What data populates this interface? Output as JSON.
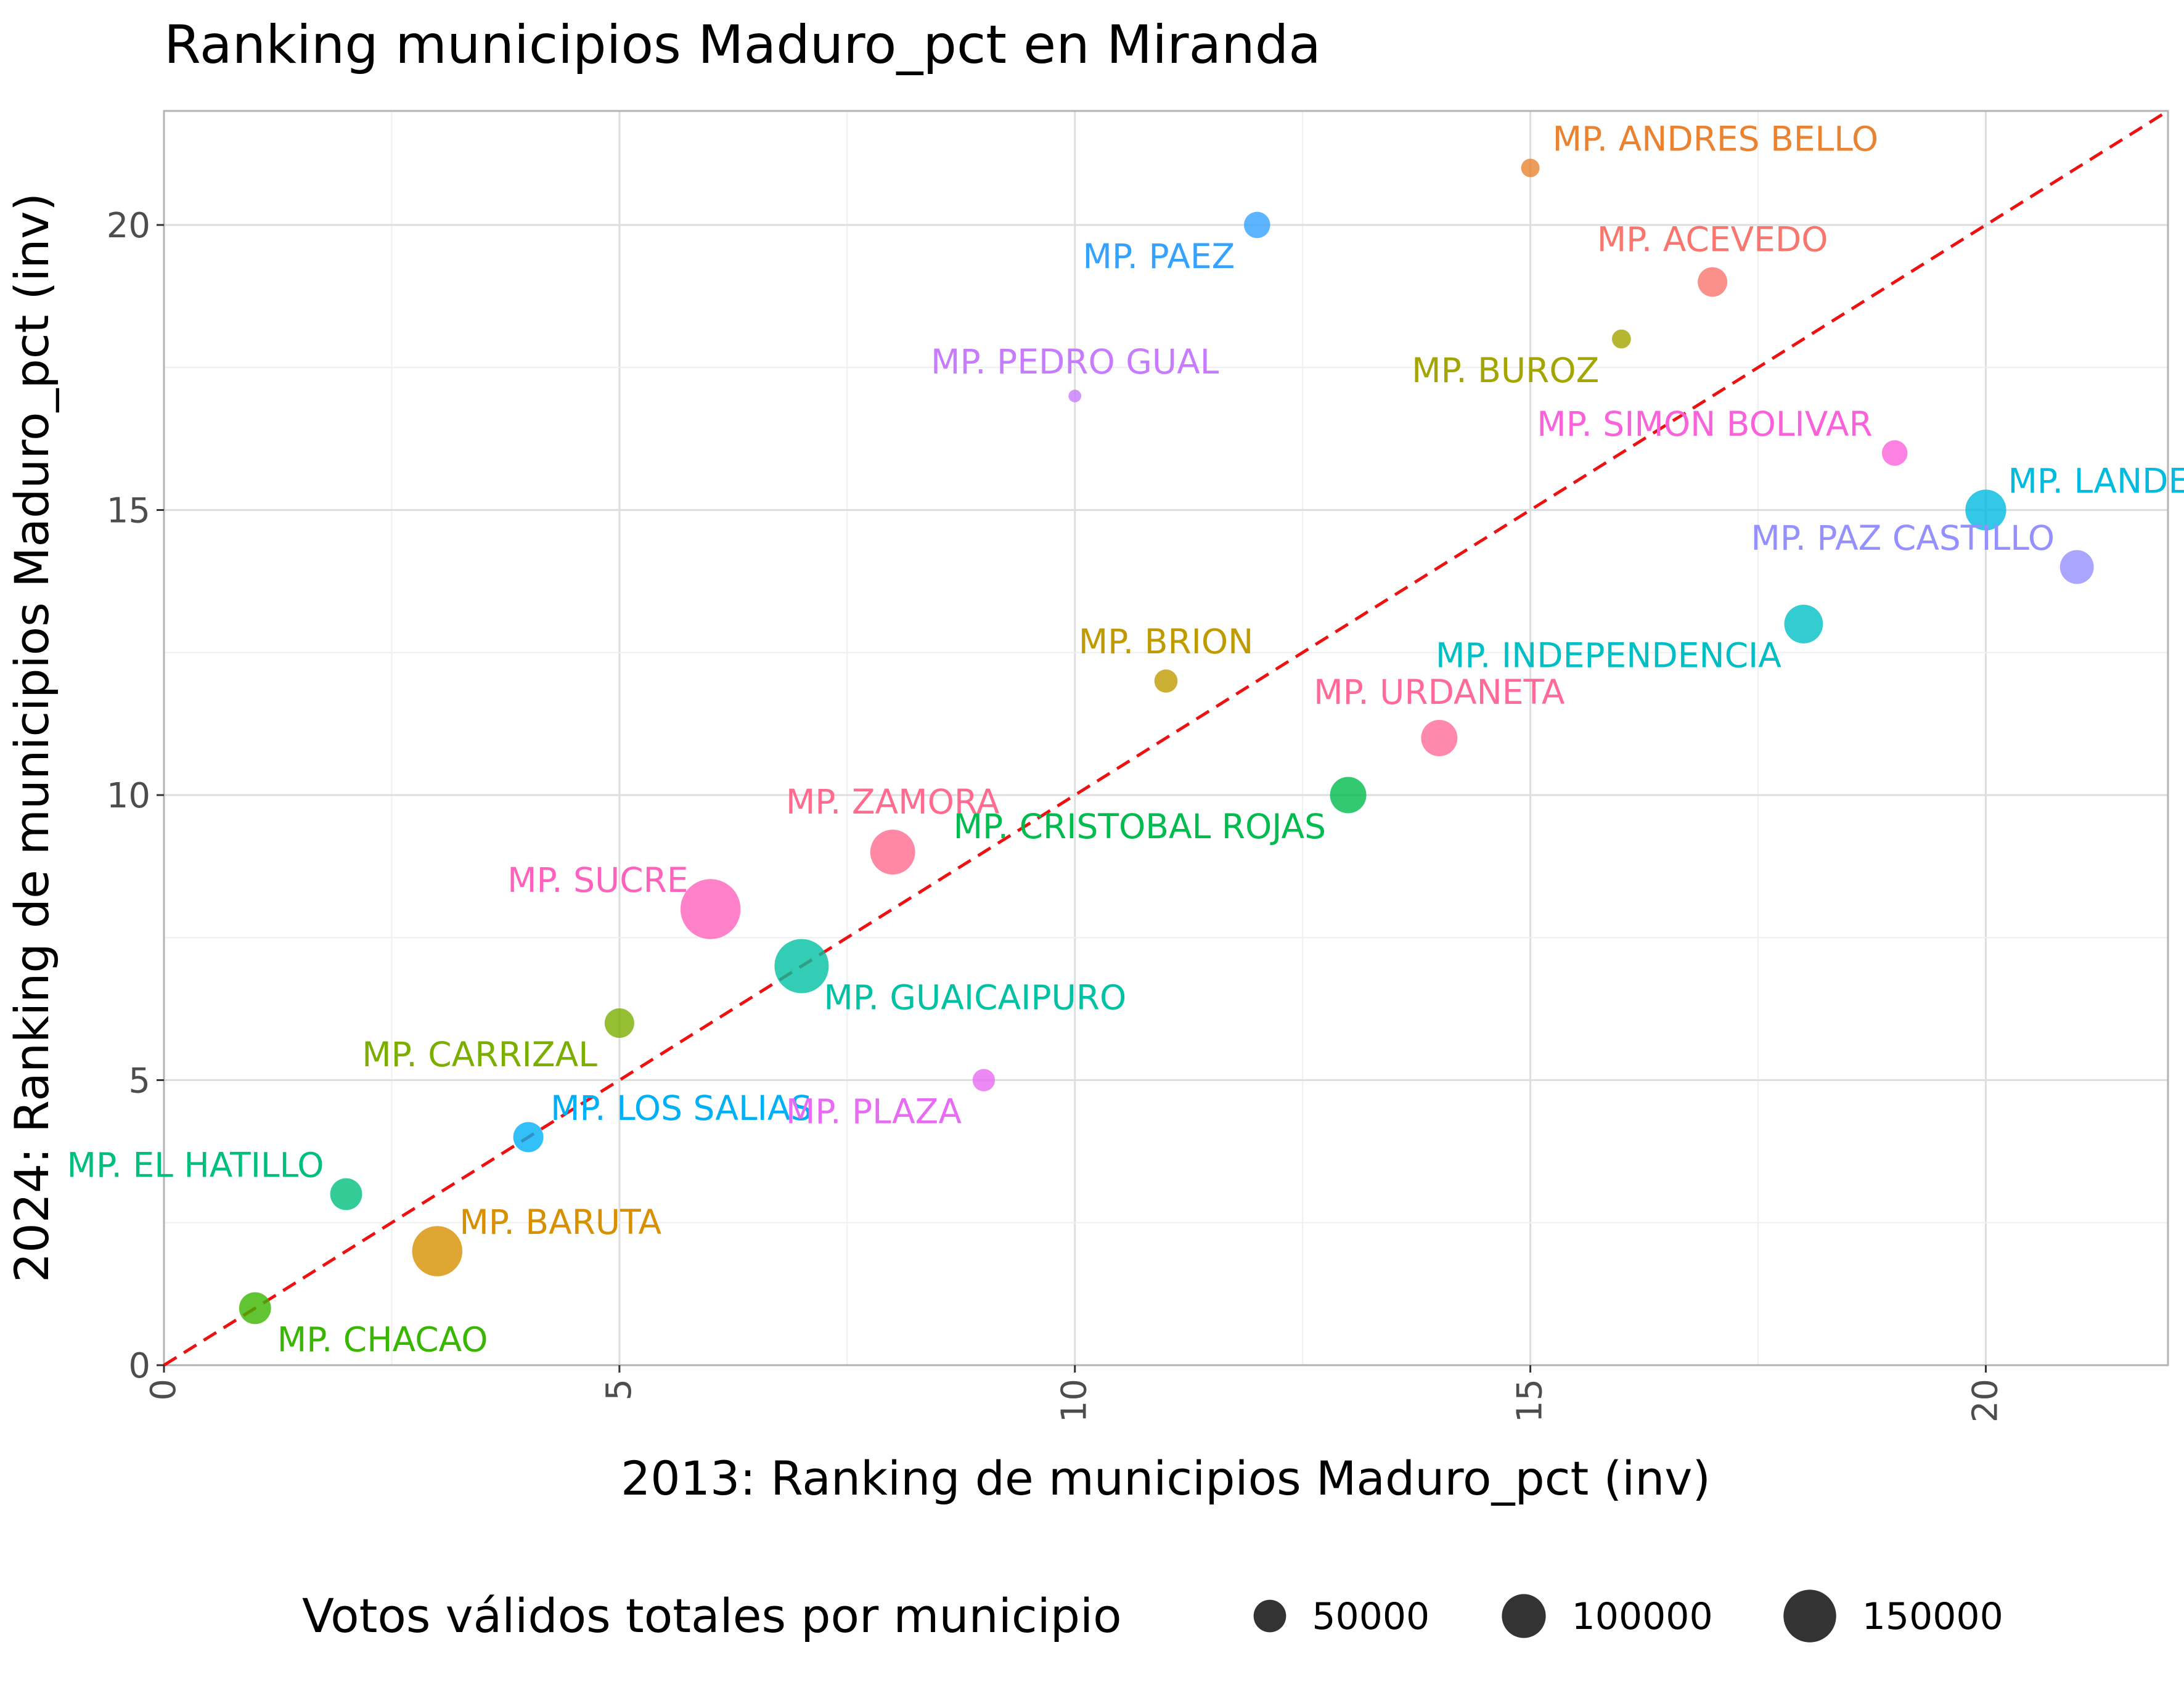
{
  "chart_data": {
    "type": "scatter",
    "title": "Ranking municipios Maduro_pct en Miranda",
    "xlabel": "2013: Ranking de municipios Maduro_pct (inv)",
    "ylabel": "2024: Ranking de municipios Maduro_pct (inv)",
    "xlim": [
      0,
      22
    ],
    "ylim": [
      0,
      22
    ],
    "x_ticks": [
      0,
      5,
      10,
      15,
      20
    ],
    "y_ticks": [
      0,
      5,
      10,
      15,
      20
    ],
    "grid": true,
    "reference_line": {
      "type": "diagonal y = x",
      "style": "dashed",
      "color": "#ee1111"
    },
    "legend": {
      "title": "Votos válidos totales por municipio",
      "placement": "bottom",
      "entries": [
        {
          "label": "50000",
          "value": 50000
        },
        {
          "label": "100000",
          "value": 100000
        },
        {
          "label": "150000",
          "value": 150000
        }
      ]
    },
    "points": [
      {
        "label": "MP. ACEVEDO",
        "x": 17,
        "y": 19,
        "votes": 40000,
        "color": "#F8766D",
        "label_pos": "above"
      },
      {
        "label": "MP. ANDRES BELLO",
        "x": 15,
        "y": 21,
        "votes": 12000,
        "color": "#EA8331",
        "label_pos": "above-right"
      },
      {
        "label": "MP. BARUTA",
        "x": 3,
        "y": 2,
        "votes": 135000,
        "color": "#D89000",
        "label_pos": "above-right"
      },
      {
        "label": "MP. BRION",
        "x": 11,
        "y": 12,
        "votes": 22000,
        "color": "#C09B00",
        "label_pos": "above"
      },
      {
        "label": "MP. BUROZ",
        "x": 16,
        "y": 18,
        "votes": 13000,
        "color": "#A3A500",
        "label_pos": "below-left"
      },
      {
        "label": "MP. CARRIZAL",
        "x": 5,
        "y": 6,
        "votes": 40000,
        "color": "#7CAE00",
        "label_pos": "below-left"
      },
      {
        "label": "MP. CHACAO",
        "x": 1,
        "y": 1,
        "votes": 48000,
        "color": "#39B600",
        "label_pos": "below-right"
      },
      {
        "label": "MP. CRISTOBAL ROJAS",
        "x": 13,
        "y": 10,
        "votes": 65000,
        "color": "#00BB4E",
        "label_pos": "below-left"
      },
      {
        "label": "MP. EL HATILLO",
        "x": 2,
        "y": 3,
        "votes": 48000,
        "color": "#00BF7D",
        "label_pos": "above-left"
      },
      {
        "label": "MP. GUAICAIPURO",
        "x": 7,
        "y": 7,
        "votes": 160000,
        "color": "#00C1A3",
        "label_pos": "below-right"
      },
      {
        "label": "MP. INDEPENDENCIA",
        "x": 18,
        "y": 13,
        "votes": 75000,
        "color": "#00BFC4",
        "label_pos": "below-left"
      },
      {
        "label": "MP. LANDER",
        "x": 20,
        "y": 15,
        "votes": 85000,
        "color": "#00BAE0",
        "label_pos": "above-right"
      },
      {
        "label": "MP. LOS SALIAS",
        "x": 4,
        "y": 4,
        "votes": 42000,
        "color": "#00B0F6",
        "label_pos": "above-right"
      },
      {
        "label": "MP. PAEZ",
        "x": 12,
        "y": 20,
        "votes": 30000,
        "color": "#35A2FF",
        "label_pos": "below-left"
      },
      {
        "label": "MP. PAZ CASTILLO",
        "x": 21,
        "y": 14,
        "votes": 55000,
        "color": "#9590FF",
        "label_pos": "above-left"
      },
      {
        "label": "MP. PEDRO GUAL",
        "x": 10,
        "y": 17,
        "votes": 4000,
        "color": "#C77CFF",
        "label_pos": "above"
      },
      {
        "label": "MP. PLAZA",
        "x": 9,
        "y": 5,
        "votes": 20000,
        "color": "#E76BF3",
        "label_pos": "below-left"
      },
      {
        "label": "MP. SIMON BOLIVAR",
        "x": 19,
        "y": 16,
        "votes": 28000,
        "color": "#FA62DB",
        "label_pos": "above-left"
      },
      {
        "label": "MP. SUCRE",
        "x": 6,
        "y": 8,
        "votes": 200000,
        "color": "#FF62BC",
        "label_pos": "above-left"
      },
      {
        "label": "MP. URDANETA",
        "x": 14,
        "y": 11,
        "votes": 65000,
        "color": "#FF6A98",
        "label_pos": "above"
      },
      {
        "label": "MP. ZAMORA",
        "x": 8,
        "y": 9,
        "votes": 105000,
        "color": "#FF6C8F",
        "label_pos": "above"
      }
    ]
  }
}
